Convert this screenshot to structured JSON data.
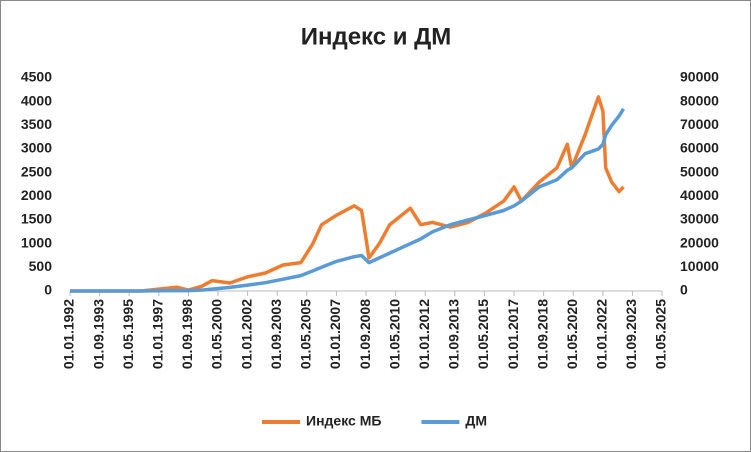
{
  "chart_data": {
    "type": "line",
    "title": "Индекс и ДМ",
    "x": [
      "01.01.1992",
      "01.01.1994",
      "01.01.1996",
      "01.01.1997",
      "01.01.1998",
      "01.09.1998",
      "01.06.1999",
      "01.01.2000",
      "01.01.2001",
      "01.01.2002",
      "01.01.2003",
      "01.01.2004",
      "01.01.2005",
      "01.09.2005",
      "01.03.2006",
      "01.01.2007",
      "01.01.2008",
      "01.06.2008",
      "01.11.2008",
      "01.06.2009",
      "01.01.2010",
      "01.03.2011",
      "01.10.2011",
      "01.06.2012",
      "01.06.2013",
      "01.06.2014",
      "01.06.2015",
      "01.06.2016",
      "01.01.2017",
      "01.06.2017",
      "01.06.2018",
      "01.06.2019",
      "01.01.2020",
      "01.04.2020",
      "01.01.2021",
      "01.10.2021",
      "01.01.2022",
      "01.03.2022",
      "01.07.2022",
      "01.12.2022",
      "01.03.2023"
    ],
    "series": [
      {
        "name": "Индекс МБ",
        "color": "#ed7d31",
        "axis": "y",
        "values": [
          0,
          0,
          0,
          40,
          80,
          20,
          100,
          220,
          170,
          300,
          380,
          550,
          600,
          1000,
          1400,
          1600,
          1800,
          1700,
          700,
          1000,
          1400,
          1750,
          1400,
          1450,
          1350,
          1450,
          1650,
          1900,
          2200,
          1900,
          2300,
          2600,
          3100,
          2600,
          3300,
          4100,
          3800,
          2600,
          2300,
          2100,
          2200
        ]
      },
      {
        "name": "ДМ",
        "color": "#5b9bd5",
        "axis": "y2",
        "values": [
          0,
          0,
          0,
          100,
          200,
          150,
          400,
          800,
          1500,
          2500,
          3500,
          5000,
          6500,
          8500,
          10000,
          12500,
          14500,
          15000,
          12000,
          14000,
          16000,
          20000,
          22000,
          25000,
          28000,
          30000,
          32000,
          34000,
          36000,
          38000,
          44000,
          47000,
          51000,
          52000,
          58000,
          60000,
          62000,
          66000,
          70000,
          74000,
          77000
        ]
      }
    ],
    "xlim": [
      "01.01.1992",
      "01.05.2025"
    ],
    "xticks": [
      "01.01.1992",
      "01.09.1993",
      "01.05.1995",
      "01.01.1997",
      "01.09.1998",
      "01.05.2000",
      "01.01.2002",
      "01.09.2003",
      "01.05.2005",
      "01.01.2007",
      "01.09.2008",
      "01.05.2010",
      "01.01.2012",
      "01.09.2013",
      "01.05.2015",
      "01.01.2017",
      "01.09.2018",
      "01.05.2020",
      "01.01.2022",
      "01.09.2023",
      "01.05.2025"
    ],
    "ylim": [
      0,
      4500
    ],
    "yticks": [
      0,
      500,
      1000,
      1500,
      2000,
      2500,
      3000,
      3500,
      4000,
      4500
    ],
    "y2lim": [
      0,
      90000
    ],
    "y2ticks": [
      0,
      10000,
      20000,
      30000,
      40000,
      50000,
      60000,
      70000,
      80000,
      90000
    ],
    "legend": "bottom"
  }
}
